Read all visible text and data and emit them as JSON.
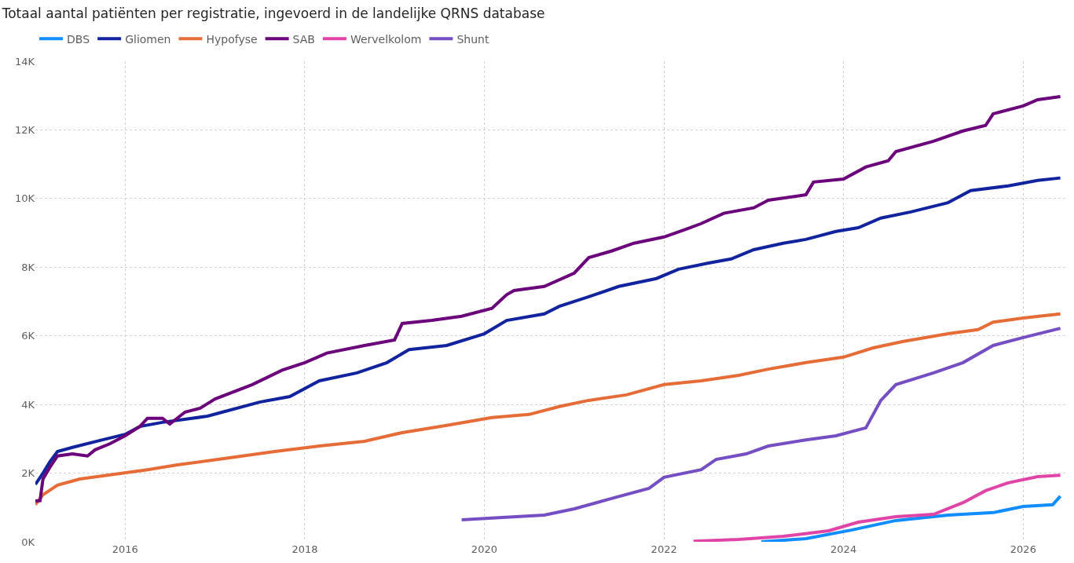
{
  "chart_data": {
    "type": "line",
    "title": "Totaal aantal patiënten per registratie, ingevoerd in de landelijke QRNS database",
    "legend": "top left",
    "grid": true,
    "marker": "none",
    "line_style": "solid",
    "xlim": [
      "2015-01-01",
      "2026-07-01"
    ],
    "ylim": [
      0,
      14000
    ],
    "xticks": [
      {
        "value": "2016",
        "label": "2016"
      },
      {
        "value": "2018",
        "label": "2018"
      },
      {
        "value": "2020",
        "label": "2020"
      },
      {
        "value": "2022",
        "label": "2022"
      },
      {
        "value": "2024",
        "label": "2024"
      },
      {
        "value": "2026",
        "label": "2026"
      }
    ],
    "yticks": [
      {
        "value": 0,
        "label": "0K"
      },
      {
        "value": 2000,
        "label": "2K"
      },
      {
        "value": 4000,
        "label": "4K"
      },
      {
        "value": 6000,
        "label": "6K"
      },
      {
        "value": 8000,
        "label": "8K"
      },
      {
        "value": 10000,
        "label": "10K"
      },
      {
        "value": 12000,
        "label": "12K"
      },
      {
        "value": 14000,
        "label": "14K"
      }
    ],
    "series": [
      {
        "name": "DBS",
        "color": "#118dff",
        "x": [
          "2023-02",
          "2023-08",
          "2024-02",
          "2024-08",
          "2025-03",
          "2025-09",
          "2026-01",
          "2026-05",
          "2026-06"
        ],
        "values": [
          0,
          90,
          340,
          620,
          780,
          850,
          1030,
          1080,
          1330
        ]
      },
      {
        "name": "Gliomen",
        "color": "#12239e",
        "x": [
          "2015-01",
          "2015-02",
          "2015-03",
          "2015-04",
          "2015-06",
          "2015-10",
          "2016-01",
          "2016-03",
          "2016-06",
          "2016-12",
          "2017-02",
          "2017-07",
          "2017-11",
          "2018-03",
          "2018-08",
          "2018-12",
          "2019-03",
          "2019-08",
          "2020-01",
          "2020-04",
          "2020-09",
          "2020-11",
          "2021-03",
          "2021-07",
          "2021-12",
          "2022-03",
          "2022-07",
          "2022-10",
          "2023-01",
          "2023-05",
          "2023-08",
          "2023-12",
          "2024-03",
          "2024-06",
          "2024-10",
          "2025-03",
          "2025-06",
          "2025-11",
          "2026-03",
          "2026-06"
        ],
        "values": [
          1670,
          2000,
          2330,
          2630,
          2750,
          2970,
          3130,
          3360,
          3480,
          3660,
          3780,
          4070,
          4230,
          4690,
          4920,
          5220,
          5600,
          5720,
          6060,
          6450,
          6640,
          6860,
          7140,
          7440,
          7670,
          7940,
          8120,
          8240,
          8510,
          8700,
          8810,
          9040,
          9150,
          9430,
          9610,
          9880,
          10230,
          10370,
          10530,
          10600
        ]
      },
      {
        "name": "Hypofyse",
        "color": "#e66c37",
        "x": [
          "2015-01",
          "2015-02",
          "2015-04",
          "2015-07",
          "2015-11",
          "2016-04",
          "2016-08",
          "2017-03",
          "2017-09",
          "2018-03",
          "2018-09",
          "2019-02",
          "2019-08",
          "2020-02",
          "2020-07",
          "2020-11",
          "2021-03",
          "2021-08",
          "2022-01",
          "2022-06",
          "2022-11",
          "2023-03",
          "2023-08",
          "2024-01",
          "2024-05",
          "2024-09",
          "2025-03",
          "2025-07",
          "2025-09",
          "2026-01",
          "2026-06"
        ],
        "values": [
          1080,
          1370,
          1650,
          1830,
          1950,
          2100,
          2240,
          2450,
          2630,
          2790,
          2930,
          3180,
          3390,
          3620,
          3710,
          3940,
          4120,
          4280,
          4580,
          4690,
          4850,
          5030,
          5220,
          5380,
          5650,
          5840,
          6060,
          6180,
          6400,
          6520,
          6640
        ]
      },
      {
        "name": "SAB",
        "color": "#6b007b",
        "x": [
          "2015-01",
          "2015-01-20",
          "2015-02",
          "2015-03",
          "2015-04",
          "2015-06",
          "2015-08",
          "2015-09",
          "2015-11",
          "2016-01",
          "2016-03",
          "2016-04",
          "2016-06",
          "2016-07",
          "2016-09",
          "2016-11",
          "2017-01",
          "2017-06",
          "2017-10",
          "2018-01",
          "2018-04",
          "2018-09",
          "2019-01",
          "2019-02",
          "2019-06",
          "2019-10",
          "2020-02",
          "2020-04",
          "2020-05",
          "2020-09",
          "2021-01",
          "2021-03",
          "2021-06",
          "2021-09",
          "2022-01",
          "2022-04",
          "2022-06",
          "2022-09",
          "2023-01",
          "2023-03",
          "2023-08",
          "2023-09",
          "2024-01",
          "2024-04",
          "2024-07",
          "2024-08",
          "2025-01",
          "2025-05",
          "2025-08",
          "2025-09",
          "2026-01",
          "2026-03",
          "2026-06"
        ],
        "values": [
          1190,
          1200,
          1830,
          2170,
          2500,
          2560,
          2500,
          2680,
          2860,
          3090,
          3360,
          3600,
          3600,
          3430,
          3780,
          3890,
          4160,
          4580,
          5000,
          5220,
          5500,
          5720,
          5880,
          6360,
          6450,
          6570,
          6800,
          7200,
          7320,
          7440,
          7830,
          8280,
          8470,
          8700,
          8880,
          9110,
          9270,
          9570,
          9730,
          9950,
          10110,
          10480,
          10570,
          10920,
          11100,
          11370,
          11670,
          11970,
          12130,
          12470,
          12700,
          12880,
          12970
        ]
      },
      {
        "name": "Wervelkolom",
        "color": "#e044a7",
        "x": [
          "2022-05",
          "2022-11",
          "2023-05",
          "2023-11",
          "2024-03",
          "2024-08",
          "2025-01",
          "2025-05",
          "2025-08",
          "2025-11",
          "2026-03",
          "2026-06"
        ],
        "values": [
          20,
          70,
          160,
          320,
          570,
          730,
          800,
          1140,
          1490,
          1720,
          1900,
          1940
        ]
      },
      {
        "name": "Shunt",
        "color": "#744ec2",
        "x": [
          "2019-10",
          "2020-02",
          "2020-09",
          "2021-01",
          "2021-06",
          "2021-11",
          "2022-01",
          "2022-06",
          "2022-08",
          "2022-12",
          "2023-03",
          "2023-08",
          "2023-12",
          "2024-04",
          "2024-06",
          "2024-08",
          "2025-01",
          "2025-05",
          "2025-09",
          "2026-01",
          "2026-06"
        ],
        "values": [
          640,
          690,
          780,
          960,
          1260,
          1560,
          1880,
          2100,
          2400,
          2560,
          2790,
          2970,
          3090,
          3320,
          4120,
          4580,
          4920,
          5220,
          5720,
          5950,
          6220
        ]
      }
    ]
  }
}
